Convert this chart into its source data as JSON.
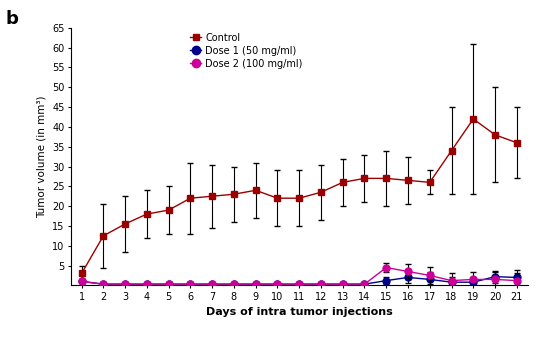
{
  "days": [
    1,
    2,
    3,
    4,
    5,
    6,
    7,
    8,
    9,
    10,
    11,
    12,
    13,
    14,
    15,
    16,
    17,
    18,
    19,
    20,
    21
  ],
  "control_mean": [
    3,
    12.5,
    15.5,
    18,
    19,
    22,
    22.5,
    23,
    24,
    22,
    22,
    23.5,
    26,
    27,
    27,
    26.5,
    26,
    34,
    42,
    38,
    36
  ],
  "control_err": [
    2,
    8,
    7,
    6,
    6,
    9,
    8,
    7,
    7,
    7,
    7,
    7,
    6,
    6,
    7,
    6,
    3,
    11,
    19,
    12,
    9
  ],
  "dose1_mean": [
    1.0,
    0.3,
    0.3,
    0.3,
    0.3,
    0.3,
    0.3,
    0.3,
    0.3,
    0.3,
    0.3,
    0.3,
    0.3,
    0.3,
    1.2,
    2.0,
    1.5,
    0.8,
    0.8,
    2.2,
    2.0
  ],
  "dose1_err": [
    0.3,
    0.2,
    0.2,
    0.2,
    0.2,
    0.2,
    0.2,
    0.2,
    0.2,
    0.2,
    0.2,
    0.2,
    0.2,
    0.3,
    0.8,
    1.5,
    1.8,
    1.2,
    0.8,
    1.5,
    1.8
  ],
  "dose2_mean": [
    1.0,
    0.3,
    0.3,
    0.3,
    0.3,
    0.3,
    0.3,
    0.3,
    0.3,
    0.3,
    0.3,
    0.3,
    0.3,
    0.3,
    4.5,
    3.5,
    2.5,
    1.2,
    1.5,
    1.5,
    1.2
  ],
  "dose2_err": [
    0.3,
    0.2,
    0.2,
    0.2,
    0.2,
    0.2,
    0.2,
    0.2,
    0.2,
    0.2,
    0.2,
    0.2,
    0.2,
    0.3,
    1.2,
    2.0,
    2.2,
    1.8,
    1.8,
    1.8,
    1.8
  ],
  "control_color": "#9B0000",
  "dose1_color": "#00008B",
  "dose2_color": "#CC0099",
  "ylabel": "Tumor volume (in mm³)",
  "xlabel": "Days of intra tumor injections",
  "panel_label": "b",
  "ylim": [
    0,
    65
  ],
  "yticks": [
    5,
    10,
    15,
    20,
    25,
    30,
    35,
    40,
    45,
    50,
    55,
    60,
    65
  ],
  "legend_labels": [
    "Control",
    "Dose 1 (50 mg/ml)",
    "Dose 2 (100 mg/ml)"
  ],
  "background_color": "#ffffff",
  "elinewidth": 0.8,
  "capsize": 2.0,
  "linewidth": 1.0,
  "markersize": 4
}
